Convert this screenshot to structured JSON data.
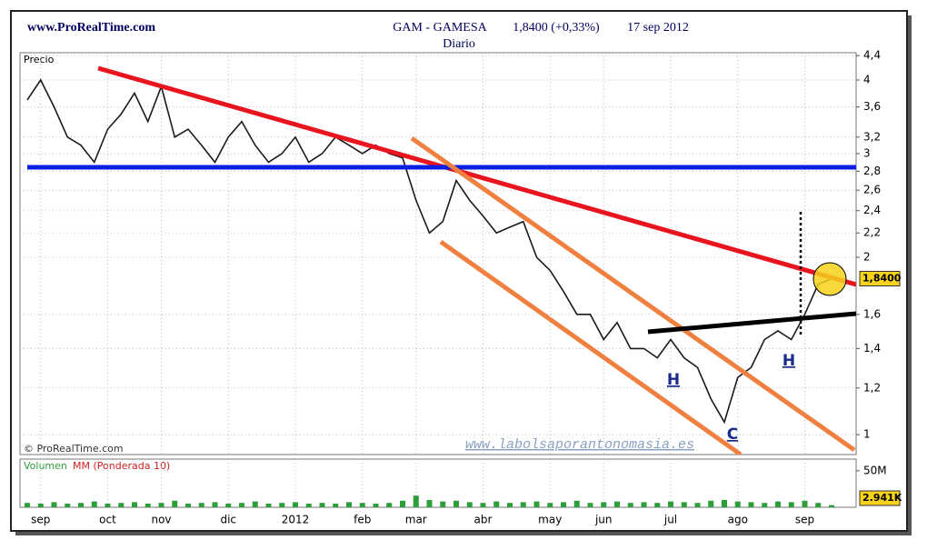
{
  "header": {
    "site": "www.ProRealTime.com",
    "title": "GAM - GAMESA",
    "quote": "1,8400 (+0,33%)",
    "date": "17 sep 2012",
    "period": "Diario",
    "copyright": "© ProRealTime.com",
    "watermark": "www.labolsaporantonomasia.es",
    "annotations": [
      "H",
      "H",
      "C"
    ]
  },
  "chart_data": [
    {
      "type": "line",
      "y_label": "Precio",
      "log_scale": true,
      "grid": true,
      "categories": [
        null,
        "sep",
        null,
        null,
        null,
        null,
        "oct",
        null,
        null,
        null,
        "nov",
        null,
        null,
        null,
        null,
        "dic",
        null,
        null,
        null,
        null,
        "2012",
        null,
        null,
        null,
        null,
        "feb",
        null,
        null,
        null,
        "mar",
        null,
        null,
        null,
        null,
        "abr",
        null,
        null,
        null,
        null,
        "may",
        null,
        null,
        null,
        "jun",
        null,
        null,
        null,
        null,
        "jul",
        null,
        null,
        null,
        null,
        "ago",
        null,
        null,
        null,
        null,
        "sep",
        null,
        null
      ],
      "series": [
        {
          "name": "GAM",
          "color": "#1a1a1a",
          "values": [
            3.7,
            4.0,
            3.6,
            3.2,
            3.1,
            2.9,
            3.3,
            3.5,
            3.8,
            3.4,
            3.9,
            3.2,
            3.3,
            3.1,
            2.9,
            3.2,
            3.4,
            3.1,
            2.9,
            3.0,
            3.2,
            2.9,
            3.0,
            3.2,
            3.1,
            3.0,
            3.1,
            3.0,
            2.95,
            2.5,
            2.2,
            2.3,
            2.7,
            2.5,
            2.35,
            2.2,
            2.25,
            2.3,
            2.0,
            1.9,
            1.75,
            1.6,
            1.6,
            1.45,
            1.55,
            1.4,
            1.4,
            1.35,
            1.45,
            1.35,
            1.3,
            1.15,
            1.05,
            1.25,
            1.3,
            1.45,
            1.5,
            1.45,
            1.6,
            1.8,
            1.84
          ],
          "value_labels": [
            null,
            null,
            null,
            null,
            null,
            null,
            null,
            null,
            null,
            null,
            null,
            null,
            null,
            null,
            null,
            null,
            null,
            null,
            null,
            null,
            null,
            null,
            null,
            null,
            null,
            null,
            null,
            null,
            null,
            null,
            null,
            null,
            null,
            null,
            null,
            null,
            null,
            null,
            null,
            null,
            null,
            null,
            null,
            null,
            null,
            null,
            null,
            null,
            null,
            null,
            null,
            null,
            null,
            null,
            null,
            null,
            null,
            null,
            null,
            null,
            "1,8400"
          ]
        }
      ],
      "ylim": [
        0.925,
        4.45
      ],
      "yticks": [
        1,
        {
          "value": 1.2,
          "label": "1,2"
        },
        {
          "value": 1.4,
          "label": "1,4"
        },
        {
          "value": 1.6,
          "label": "1,6"
        },
        2,
        {
          "value": 2.2,
          "label": "2,2"
        },
        {
          "value": 2.4,
          "label": "2,4"
        },
        {
          "value": 2.6,
          "label": "2,6"
        },
        {
          "value": 2.8,
          "label": "2,8"
        },
        3,
        {
          "value": 3.2,
          "label": "3,2"
        },
        {
          "value": 3.6,
          "label": "3,6"
        },
        4,
        {
          "value": 4.4,
          "label": "4,4"
        }
      ]
    },
    {
      "type": "bar",
      "y_label": "Volumen",
      "ma_label": "MM (Ponderada 10)",
      "series": [
        {
          "name": "Volumen",
          "color": "#2e9e3a",
          "values": [
            6000000,
            5000000,
            7000000,
            5000000,
            6000000,
            8000000,
            5000000,
            6000000,
            7000000,
            5000000,
            6000000,
            9000000,
            5000000,
            6000000,
            7000000,
            5000000,
            6000000,
            8000000,
            5000000,
            6000000,
            7000000,
            5000000,
            6000000,
            5000000,
            7000000,
            6000000,
            5000000,
            6000000,
            9000000,
            16000000,
            10000000,
            8000000,
            9000000,
            7000000,
            6000000,
            8000000,
            6000000,
            7000000,
            8000000,
            6000000,
            7000000,
            9000000,
            6000000,
            7000000,
            8000000,
            6000000,
            7000000,
            6000000,
            8000000,
            7000000,
            6000000,
            9000000,
            10000000,
            8000000,
            7000000,
            6000000,
            8000000,
            7000000,
            9000000,
            6000000,
            2941000
          ],
          "value_labels": [
            null,
            null,
            null,
            null,
            null,
            null,
            null,
            null,
            null,
            null,
            null,
            null,
            null,
            null,
            null,
            null,
            null,
            null,
            null,
            null,
            null,
            null,
            null,
            null,
            null,
            null,
            null,
            null,
            null,
            null,
            null,
            null,
            null,
            null,
            null,
            null,
            null,
            null,
            null,
            null,
            null,
            null,
            null,
            null,
            null,
            null,
            null,
            null,
            null,
            null,
            null,
            null,
            null,
            null,
            null,
            null,
            null,
            null,
            null,
            null,
            "2.941K"
          ]
        }
      ],
      "ylim": [
        0,
        66000000
      ],
      "yticks": [
        {
          "value": 50000000,
          "label": "50M"
        }
      ]
    }
  ]
}
